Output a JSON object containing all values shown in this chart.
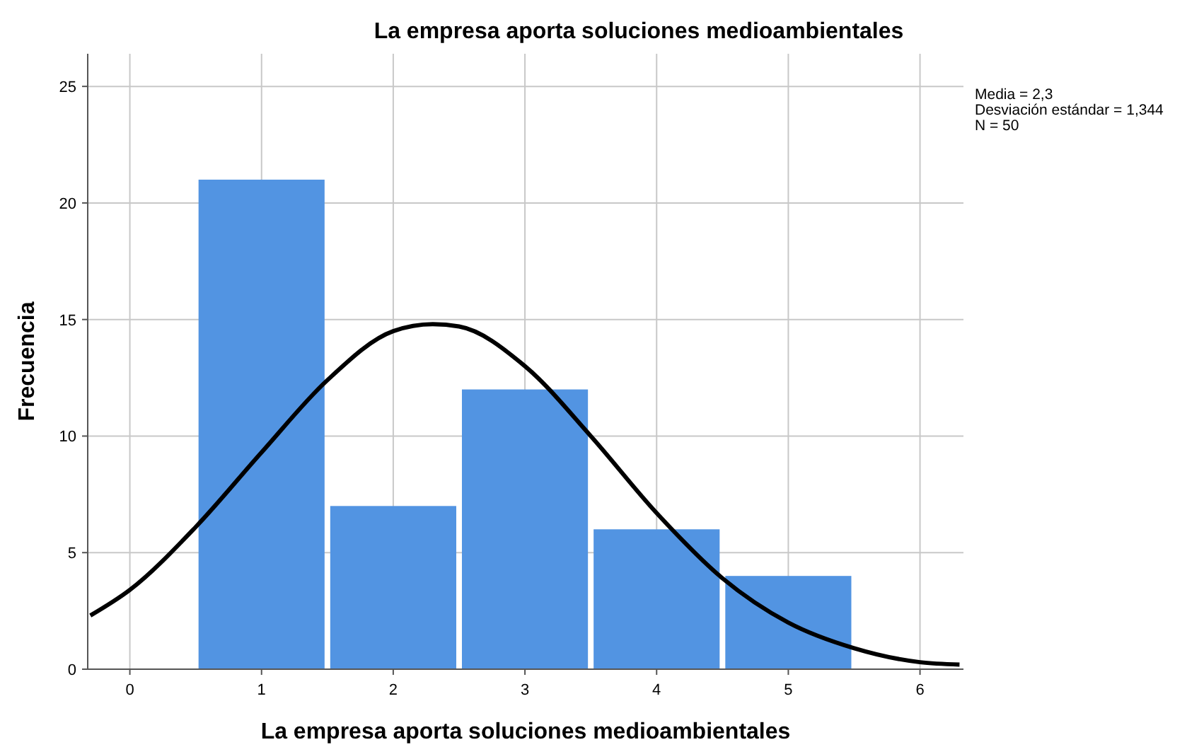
{
  "chart_data": {
    "type": "histogram",
    "title": "La empresa aporta soluciones medioambientales",
    "xlabel": "La empresa aporta soluciones medioambientales",
    "ylabel": "Frecuencia",
    "bins": [
      0.5,
      1.5,
      2.5,
      3.5,
      4.5,
      5.5
    ],
    "series": [
      {
        "color": "#5294e2",
        "values": [
          21,
          7,
          12,
          6,
          4
        ]
      },
      {
        "type": "line",
        "color": "#000000",
        "x": [
          -0.3,
          0,
          0.5,
          1,
          1.5,
          2,
          2.3,
          2.5,
          3,
          3.5,
          4,
          4.5,
          5,
          5.5,
          6,
          6.3
        ],
        "values": [
          2.3,
          3.4,
          6.1,
          9.3,
          12.4,
          14.5,
          14.8,
          14.7,
          13.0,
          10.0,
          6.7,
          3.9,
          2.0,
          0.9,
          0.3,
          0.2
        ]
      }
    ],
    "xlim": [
      -0.32,
      6.33
    ],
    "ylim": [
      0,
      26.4
    ],
    "xticks": [
      0,
      1,
      2,
      3,
      4,
      5,
      6
    ],
    "yticks": [
      0,
      5,
      10,
      15,
      20,
      25
    ],
    "grid": true,
    "marker": "none",
    "line_style": "solid",
    "annotations": [
      "Media = 2,3",
      "Desviación estándar = 1,344",
      "N = 50"
    ]
  }
}
